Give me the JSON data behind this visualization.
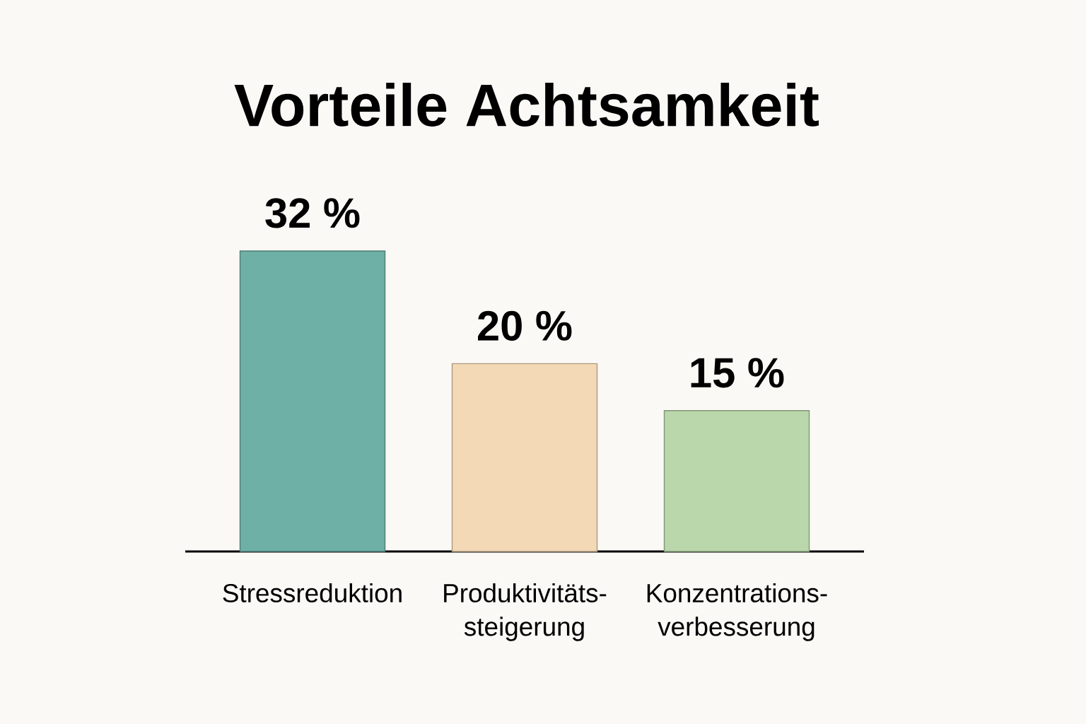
{
  "chart_data": {
    "type": "bar",
    "title": "Vorteile Achtsamkeit",
    "categories": [
      "Stressreduktion",
      "Produktivitäts-steigerung",
      "Konzentrations-verbesserung"
    ],
    "values": [
      32,
      20,
      15
    ],
    "value_labels": [
      "32 %",
      "20 %",
      "15 %"
    ],
    "colors": [
      "#6fb0a6",
      "#f4d9b6",
      "#b9d7ab"
    ]
  }
}
